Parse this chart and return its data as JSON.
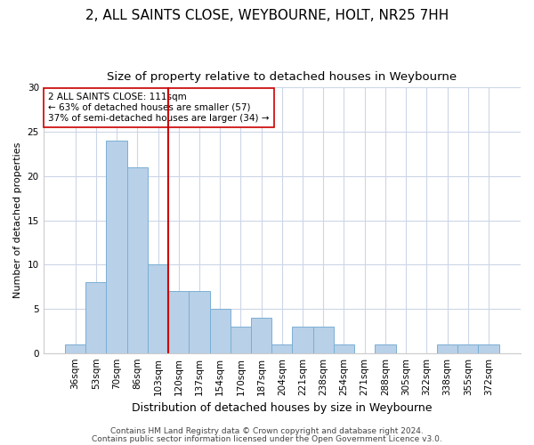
{
  "title1": "2, ALL SAINTS CLOSE, WEYBOURNE, HOLT, NR25 7HH",
  "title2": "Size of property relative to detached houses in Weybourne",
  "xlabel": "Distribution of detached houses by size in Weybourne",
  "ylabel": "Number of detached properties",
  "categories": [
    "36sqm",
    "53sqm",
    "70sqm",
    "86sqm",
    "103sqm",
    "120sqm",
    "137sqm",
    "154sqm",
    "170sqm",
    "187sqm",
    "204sqm",
    "221sqm",
    "238sqm",
    "254sqm",
    "271sqm",
    "288sqm",
    "305sqm",
    "322sqm",
    "338sqm",
    "355sqm",
    "372sqm"
  ],
  "values": [
    1,
    8,
    24,
    21,
    10,
    7,
    7,
    5,
    3,
    4,
    1,
    3,
    3,
    1,
    0,
    1,
    0,
    0,
    1,
    1,
    1
  ],
  "bar_color": "#b8d0e8",
  "bar_edge_color": "#7aafd4",
  "vline_x": 4.5,
  "vline_color": "#cc0000",
  "annotation_text": "2 ALL SAINTS CLOSE: 111sqm\n← 63% of detached houses are smaller (57)\n37% of semi-detached houses are larger (34) →",
  "annotation_box_color": "#ffffff",
  "annotation_box_edge": "#cc0000",
  "ylim": [
    0,
    30
  ],
  "yticks": [
    0,
    5,
    10,
    15,
    20,
    25,
    30
  ],
  "footer1": "Contains HM Land Registry data © Crown copyright and database right 2024.",
  "footer2": "Contains public sector information licensed under the Open Government Licence v3.0.",
  "bg_color": "#ffffff",
  "grid_color": "#ccd6e8",
  "title1_fontsize": 11,
  "title2_fontsize": 9.5,
  "xlabel_fontsize": 9,
  "ylabel_fontsize": 8,
  "tick_fontsize": 7.5,
  "footer_fontsize": 6.5,
  "annotation_fontsize": 7.5
}
